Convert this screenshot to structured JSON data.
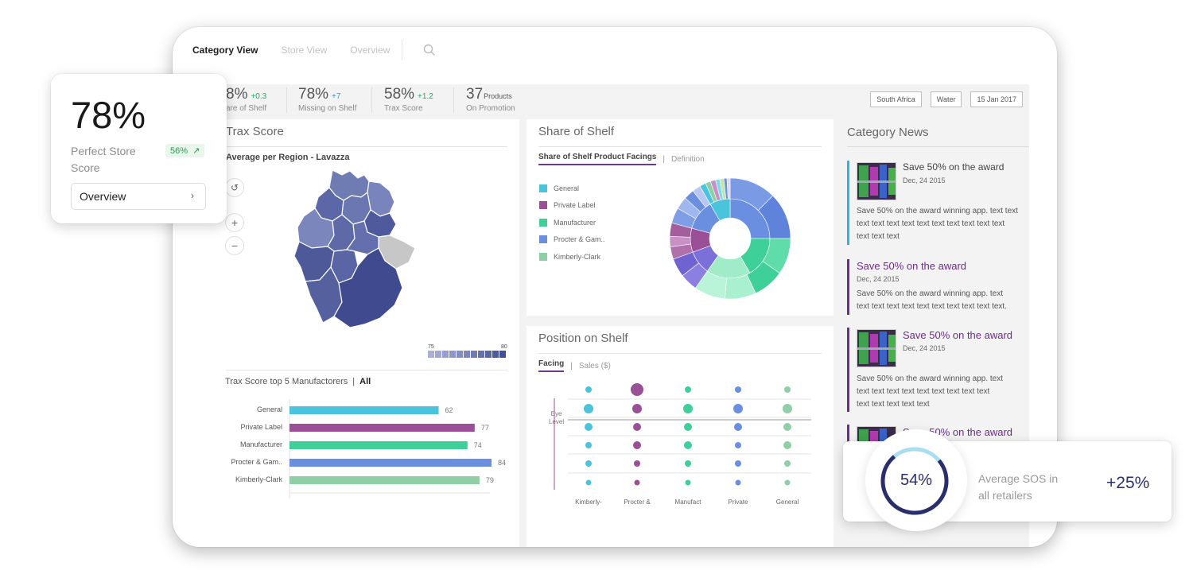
{
  "nav": {
    "tabs": [
      "Category View",
      "Store View",
      "Overview"
    ]
  },
  "kpis": [
    {
      "value": "8%",
      "delta": "+0.3",
      "label": "are of Shelf"
    },
    {
      "value": "78%",
      "delta": "+7",
      "label": "Missing on Shelf"
    },
    {
      "value": "58%",
      "delta": "+1.2",
      "label": "Trax Score"
    },
    {
      "value": "37",
      "unit": "Products",
      "label": "On Promotion"
    }
  ],
  "filters": [
    "South Africa",
    "Water",
    "15 Jan 2017"
  ],
  "trax": {
    "title": "Trax Score",
    "subtitle": "Average per Region - Lavazza",
    "scale_min": "75",
    "scale_max": "80",
    "top5_title": "Trax Score top 5 Manufactorers",
    "top5_filter": "All"
  },
  "share": {
    "title": "Share of Shelf",
    "tab_active": "Share of Shelf Product Facings",
    "tab_other": "Definition",
    "legend": [
      {
        "label": "General",
        "color": "#49c4dc"
      },
      {
        "label": "Private Label",
        "color": "#9b4f96"
      },
      {
        "label": "Manufacturer",
        "color": "#3fd09a"
      },
      {
        "label": "Procter & Gam..",
        "color": "#6a8ee0"
      },
      {
        "label": "Kimberly-Clark",
        "color": "#8fcfa6"
      }
    ]
  },
  "position": {
    "title": "Position on Shelf",
    "tab_active": "Facing",
    "tab_other": "Sales ($)",
    "eye_level": [
      "Eye",
      "Level"
    ],
    "columns": [
      "Kimberly-",
      "Procter &",
      "Manufact",
      "Private",
      "General"
    ]
  },
  "news": {
    "title": "Category News",
    "items": [
      {
        "title": "Save 50% on the award",
        "date": "Dec, 24 2015",
        "body": [
          "Save 50% on the award winning app. text text",
          "text text text text text text text text text text",
          "text text text"
        ]
      },
      {
        "title": "Save 50% on the award",
        "date": "Dec, 24 2015",
        "body": [
          "Save 50% on the award winning app. text",
          "text text text text text text text text text text."
        ]
      },
      {
        "title": "Save 50% on the award",
        "date": "Dec, 24 2015",
        "body": [
          "Save 50% on the award winning app. text",
          "text text text text text text text text text",
          "text text text text text"
        ]
      },
      {
        "title": "Save 50% on the award"
      }
    ]
  },
  "card_store": {
    "value": "78%",
    "label": "Perfect Store Score",
    "chip": "56%",
    "chip_icon": "arrow-up-right-icon",
    "button": "Overview"
  },
  "card_sos": {
    "value": "54%",
    "progress": 0.75,
    "label_1": "Average SOS in",
    "label_2": "all retailers",
    "delta": "+25%"
  },
  "chart_data": {
    "type": "bar",
    "categories": [
      "General",
      "Private Label",
      "Manufacturer",
      "Procter & Gam..",
      "Kimberly-Clark"
    ],
    "values": [
      62,
      77,
      74,
      84,
      79
    ],
    "colors": [
      "#49c4dc",
      "#9b4f96",
      "#3fd09a",
      "#6a8ee0",
      "#8fcfa6"
    ],
    "title": "Trax Score top 5 Manufactorers",
    "xlim": [
      0,
      100
    ]
  }
}
